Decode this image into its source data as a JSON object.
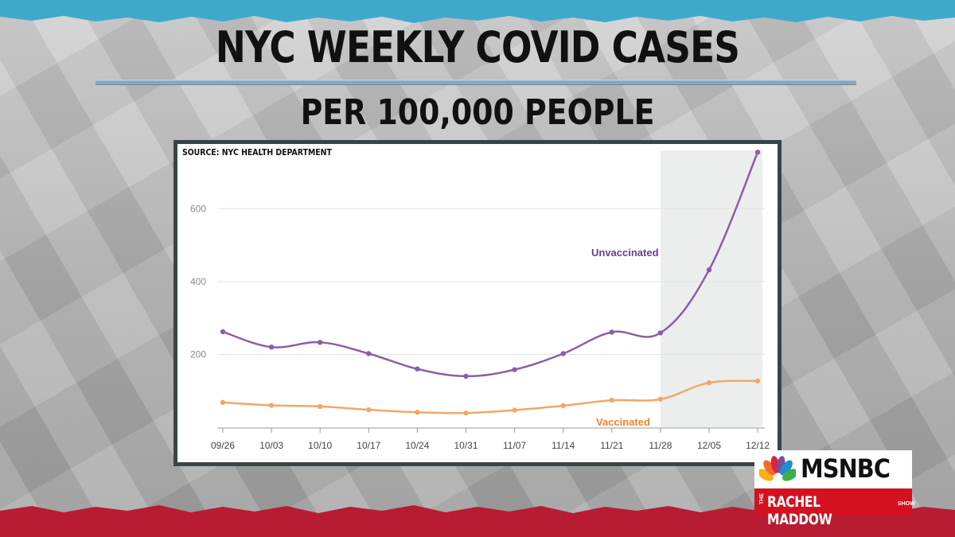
{
  "header": {
    "title": "NYC WEEKLY COVID CASES",
    "subtitle": "PER 100,000 PEOPLE"
  },
  "source_note": "SOURCE: NYC HEALTH DEPARTMENT",
  "branding": {
    "network": "MSNBC",
    "show_prefix": "THE",
    "show_name": "RACHEL MADDOW",
    "show_suffix": "SHOW"
  },
  "colors": {
    "unvaccinated": "#8a5fa6",
    "vaccinated": "#f0a868",
    "unvaccinated_label": "#6a3d8f",
    "vaccinated_label": "#e8862e",
    "highlight": "#eceeed",
    "top_band": "#3fa9cc",
    "bottom_band": "#b81c33"
  },
  "chart_data": {
    "type": "line",
    "x": [
      "09/26",
      "10/03",
      "10/10",
      "10/17",
      "10/24",
      "10/31",
      "11/07",
      "11/14",
      "11/21",
      "11/28",
      "12/05",
      "12/12"
    ],
    "yticks": [
      200,
      400,
      600
    ],
    "ylim": [
      0,
      760
    ],
    "grid": true,
    "highlight_range": [
      "11/28",
      "12/12"
    ],
    "series": [
      {
        "name": "Unvaccinated",
        "values": [
          262,
          220,
          233,
          202,
          160,
          140,
          158,
          202,
          261,
          259,
          432,
          755
        ]
      },
      {
        "name": "Vaccinated",
        "values": [
          68,
          60,
          57,
          48,
          41,
          39,
          47,
          59,
          74,
          77,
          122,
          127
        ]
      }
    ]
  }
}
